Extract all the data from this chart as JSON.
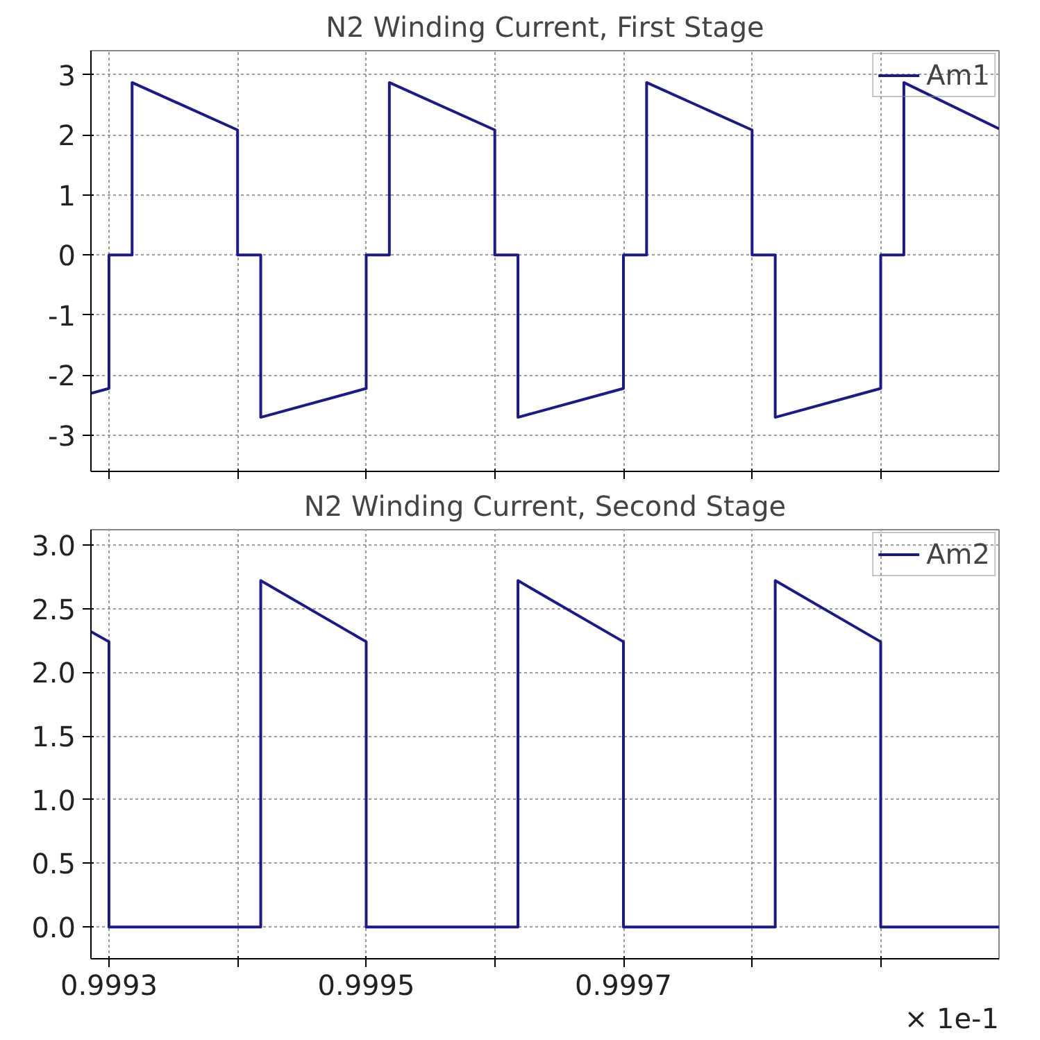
{
  "chart_data": [
    {
      "type": "line",
      "title": "N2 Winding Current, First Stage",
      "xlim": [
        0.999286,
        0.999992
      ],
      "ylim": [
        -3.6,
        3.4
      ],
      "yticks": [
        -3,
        -2,
        -1,
        0,
        1,
        2,
        3
      ],
      "xticks": [
        {
          "value": 0.9993,
          "label": null
        },
        {
          "value": 0.9994,
          "label": null
        },
        {
          "value": 0.9995,
          "label": null
        },
        {
          "value": 0.9996,
          "label": null
        },
        {
          "value": 0.9997,
          "label": null
        },
        {
          "value": 0.9998,
          "label": null
        },
        {
          "value": 0.9999,
          "label": null
        }
      ],
      "tick_labels": "y",
      "grid": true,
      "legend": "top right",
      "line_style": "solid",
      "series": [
        {
          "name": "Am1",
          "color": "#1a1a8c",
          "x": [
            0.999286,
            0.9993,
            0.9993,
            0.999318,
            0.999318,
            0.9994,
            0.9994,
            0.999418,
            0.999418,
            0.9995,
            0.9995,
            0.999518,
            0.999518,
            0.9996,
            0.9996,
            0.999618,
            0.999618,
            0.9997,
            0.9997,
            0.999718,
            0.999718,
            0.9998,
            0.9998,
            0.999818,
            0.999818,
            0.9999,
            0.9999,
            0.999918,
            0.999918,
            0.999992
          ],
          "values": [
            -2.3,
            -2.22,
            0,
            0,
            2.87,
            2.08,
            0,
            0,
            -2.7,
            -2.22,
            0,
            0,
            2.87,
            2.08,
            0,
            0,
            -2.7,
            -2.22,
            0,
            0,
            2.87,
            2.08,
            0,
            0,
            -2.7,
            -2.22,
            0,
            0,
            2.87,
            2.1
          ]
        }
      ]
    },
    {
      "type": "line",
      "title": "N2 Winding Current, Second Stage",
      "xlim": [
        0.999286,
        0.999992
      ],
      "ylim": [
        -0.25,
        3.12
      ],
      "yticks": [
        {
          "value": 0,
          "label": "0.0"
        },
        0.5,
        {
          "value": 1,
          "label": "1.0"
        },
        1.5,
        {
          "value": 2,
          "label": "2.0"
        },
        2.5,
        {
          "value": 3,
          "label": "3.0"
        }
      ],
      "xticks": [
        0.9993,
        {
          "value": 0.9994,
          "label": null
        },
        0.9995,
        {
          "value": 0.9996,
          "label": null
        },
        0.9997,
        {
          "value": 0.9998,
          "label": null
        },
        {
          "value": 0.9999,
          "label": null
        }
      ],
      "grid": true,
      "legend": "top right",
      "line_style": "solid",
      "annotations": [
        "× 1e-1"
      ],
      "series": [
        {
          "name": "Am2",
          "color": "#1a1a8c",
          "x": [
            0.999286,
            0.9993,
            0.9993,
            0.999418,
            0.999418,
            0.9995,
            0.9995,
            0.999618,
            0.999618,
            0.9997,
            0.9997,
            0.999818,
            0.999818,
            0.9999,
            0.9999,
            0.999992
          ],
          "values": [
            2.32,
            2.24,
            0,
            0,
            2.72,
            2.24,
            0,
            0,
            2.72,
            2.24,
            0,
            0,
            2.72,
            2.24,
            0,
            0
          ]
        }
      ]
    }
  ]
}
